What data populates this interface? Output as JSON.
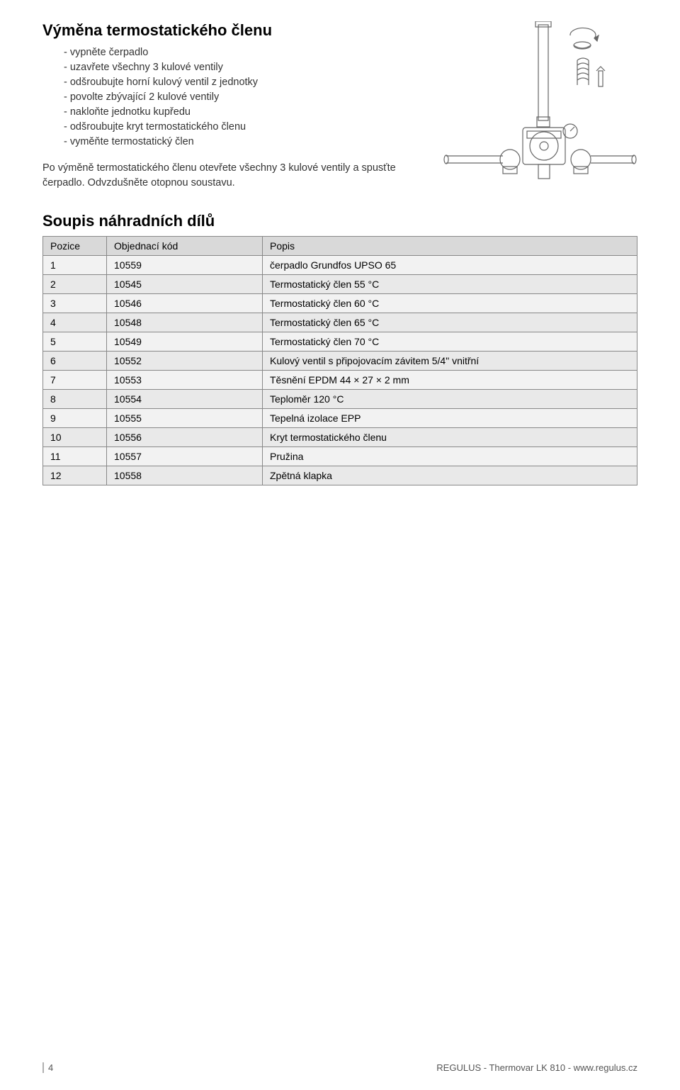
{
  "section1": {
    "heading": "Výměna termostatického členu",
    "bullets": [
      "- vypněte čerpadlo",
      "- uzavřete všechny 3 kulové ventily",
      "- odšroubujte horní kulový ventil z jednotky",
      "- povolte zbývající 2 kulové ventily",
      "- nakloňte jednotku kupředu",
      "- odšroubujte kryt termostatického členu",
      "- vyměňte termostatický člen"
    ],
    "para": "Po výměně termostatického členu otevřete všechny 3 kulové ventily a spusťte čerpadlo. Odvzdušněte otopnou soustavu."
  },
  "section2": {
    "heading": "Soupis náhradních dílů"
  },
  "table": {
    "columns": [
      "Pozice",
      "Objednací kód",
      "Popis"
    ],
    "rows": [
      [
        "1",
        "10559",
        "čerpadlo Grundfos UPSO 65"
      ],
      [
        "2",
        "10545",
        "Termostatický člen 55 °C"
      ],
      [
        "3",
        "10546",
        "Termostatický člen 60 °C"
      ],
      [
        "4",
        "10548",
        "Termostatický člen 65 °C"
      ],
      [
        "5",
        "10549",
        "Termostatický člen 70 °C"
      ],
      [
        "6",
        "10552",
        "Kulový ventil s připojovacím závitem 5/4\" vnitřní"
      ],
      [
        "7",
        "10553",
        "Těsnění EPDM 44 × 27 × 2 mm"
      ],
      [
        "8",
        "10554",
        "Teploměr 120 °C"
      ],
      [
        "9",
        "10555",
        "Tepelná izolace EPP"
      ],
      [
        "10",
        "10556",
        "Kryt termostatického členu"
      ],
      [
        "11",
        "10557",
        "Pružina"
      ],
      [
        "12",
        "10558",
        "Zpětná klapka"
      ]
    ]
  },
  "footer": {
    "page_num": "4",
    "right": "REGULUS - Thermovar LK 810 - www.regulus.cz"
  },
  "colors": {
    "heading": "#000000",
    "text": "#333333",
    "th_bg": "#d9d9d9",
    "row_odd": "#f2f2f2",
    "row_even": "#e9e9e9",
    "border": "#888888",
    "footer_text": "#555555",
    "diagram_stroke": "#666666"
  }
}
